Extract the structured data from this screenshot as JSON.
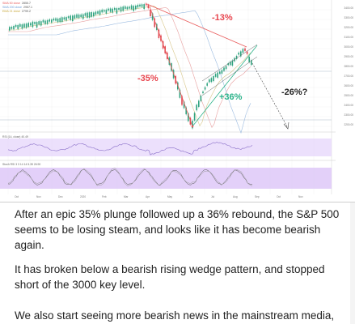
{
  "chart": {
    "legend": [
      {
        "name": "SMA 50 close",
        "value": "2855.7",
        "color": "#e85a5a"
      },
      {
        "name": "SMA 200 close",
        "value": "2957.1",
        "color": "#6a9ad6"
      },
      {
        "name": "EMA 21 close",
        "value": "2799.2",
        "color": "#c9a83a"
      }
    ],
    "rsi_label": "RSI (14, close)  40.49",
    "stoch_label": "Stoch RSI 3  3  14  14  5.35  26.90",
    "annotations": {
      "drop_top": "-13%",
      "drop_main": "-35%",
      "rebound": "+36%",
      "projection": "-26%?"
    },
    "price_ticks": [
      "3400.00",
      "3300.00",
      "3200.00",
      "3100.00",
      "3000.00",
      "2900.00",
      "2800.00",
      "2700.00",
      "2600.00",
      "2500.00",
      "2400.00",
      "2300.00",
      "2200.00"
    ],
    "date_ticks": [
      "Oct",
      "Nov",
      "Dec",
      "2020",
      "Feb",
      "Mar",
      "Apr",
      "May",
      "Jun",
      "Jul",
      "Aug",
      "Sep",
      "Oct",
      "Nov"
    ],
    "colors": {
      "up": "#2fa37f",
      "down": "#e04650",
      "rsi_band": "#e6d6fb",
      "stoch_band": "#dcc4f7"
    }
  },
  "article": {
    "paragraphs": [
      "After an epic 35% plunge followed up a 36% rebound, the S&P 500 seems to be losing steam, and looks like it has become bearish again.",
      "It has broken below a bearish rising wedge pattern, and stopped short of the 3000 key level.",
      "We also start seeing more bearish news in the mainstream media,"
    ]
  }
}
